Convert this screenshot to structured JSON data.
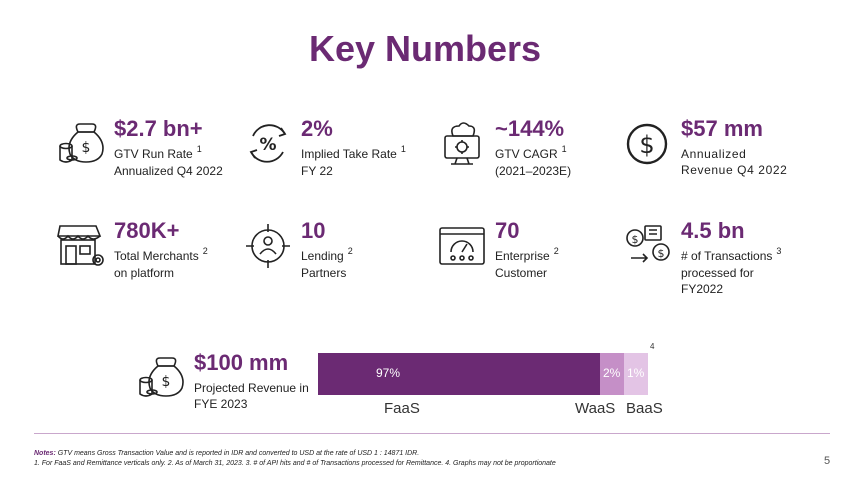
{
  "title": "Key Numbers",
  "metrics": [
    {
      "value": "$2.7 bn+",
      "line1": "GTV Run Rate",
      "line2": "Annualized Q4 2022",
      "sup": "1",
      "icon": "money-bag-icon"
    },
    {
      "value": "2%",
      "line1": "Implied Take Rate",
      "line2": "FY 22",
      "sup": "1",
      "icon": "percent-cycle-icon"
    },
    {
      "value": "~144%",
      "line1": "GTV CAGR",
      "line2": "(2021–2023E)",
      "sup": "1",
      "icon": "cloud-monitor-icon"
    },
    {
      "value": "$57 mm",
      "line1": "Annualized",
      "line2": "Revenue Q4 2022",
      "sup": "",
      "icon": "dollar-circle-icon"
    },
    {
      "value": "780K+",
      "line1": "Total Merchants",
      "line2": "on platform",
      "sup": "2",
      "icon": "storefront-icon"
    },
    {
      "value": "10",
      "line1": "Lending",
      "line2": "Partners",
      "sup": "2",
      "icon": "target-person-icon"
    },
    {
      "value": "70",
      "line1": "Enterprise",
      "line2": "Customer",
      "sup": "2",
      "icon": "dashboard-users-icon"
    },
    {
      "value": "4.5 bn",
      "line1": "# of Transactions",
      "line2": "processed for",
      "line3": "FY2022",
      "sup": "3",
      "icon": "transactions-icon"
    }
  ],
  "revenue": {
    "value": "$100 mm",
    "line1": "Projected Revenue in",
    "line2": "FYE 2023"
  },
  "chart_data": {
    "type": "bar",
    "orientation": "horizontal-stacked",
    "categories": [
      "FaaS",
      "WaaS",
      "BaaS"
    ],
    "values": [
      97,
      2,
      1
    ],
    "labels": [
      "97%",
      "2%",
      "1%"
    ],
    "colors": [
      "#6b2a73",
      "#c58fc7",
      "#e3c4e5"
    ],
    "footnote": "4"
  },
  "notes": {
    "label": "Notes:",
    "line1": "GTV means Gross Transaction Value and is reported in IDR and converted to USD at the rate of USD 1 : 14871 IDR.",
    "line2": "1. For FaaS and Remittance verticals only. 2. As of March 31, 2023. 3. # of API hits and  # of Transactions processed for Remittance. 4. Graphs may not be proportionate"
  },
  "page_number": "5",
  "colors": {
    "brand": "#6b2a73"
  }
}
